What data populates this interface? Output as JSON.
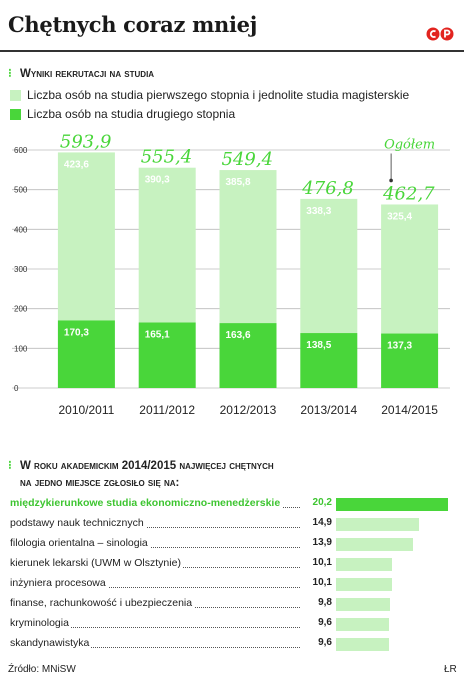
{
  "header": {
    "title": "Chętnych coraz mniej"
  },
  "section1": {
    "heading": "Wyniki rekrutacji na studia"
  },
  "legend": {
    "first": "Liczba osób na studia pierwszego stopnia i jednolite studia magisterskie",
    "second": "Liczba osób na studia drugiego stopnia"
  },
  "colors": {
    "accent": "#49d63a",
    "light": "#c7f2c0",
    "logo": "#e2241f"
  },
  "chart_data": {
    "type": "bar",
    "stacked": true,
    "categories": [
      "2010/2011",
      "2011/2012",
      "2012/2013",
      "2013/2014",
      "2014/2015"
    ],
    "series": [
      {
        "name": "Liczba osób na studia drugiego stopnia",
        "values": [
          170.3,
          165.1,
          163.6,
          138.5,
          137.3
        ],
        "labels": [
          "170,3",
          "165,1",
          "163,6",
          "138,5",
          "137,3"
        ]
      },
      {
        "name": "Liczba osób na studia pierwszego stopnia i jednolite studia magisterskie",
        "values": [
          423.6,
          390.3,
          385.8,
          338.3,
          325.4
        ],
        "labels": [
          "423,6",
          "390,3",
          "385,8",
          "338,3",
          "325,4"
        ]
      }
    ],
    "totals": [
      593.9,
      555.4,
      549.4,
      476.8,
      462.7
    ],
    "total_labels": [
      "593,9",
      "555,4",
      "549,4",
      "476,8",
      "462,7"
    ],
    "total_annotation": "Ogółem",
    "yticks": [
      "600",
      "500",
      "400",
      "300",
      "200",
      "100",
      "0"
    ],
    "ytick_values": [
      600,
      500,
      400,
      300,
      200,
      100,
      0
    ],
    "ylim": [
      0,
      600
    ],
    "grid": true
  },
  "section2": {
    "heading_line1": "W roku akademickim 2014/2015 najwięcej chętnych",
    "heading_line2": "na jedno miejsce zgłosiło się na:",
    "items": [
      {
        "name": "międzykierunkowe studia ekonomiczno-menedżerskie",
        "value": 20.2,
        "label": "20,2"
      },
      {
        "name": "podstawy nauk technicznych",
        "value": 14.9,
        "label": "14,9"
      },
      {
        "name": "filologia orientalna – sinologia",
        "value": 13.9,
        "label": "13,9"
      },
      {
        "name": "kierunek lekarski (UWM w Olsztynie)",
        "value": 10.1,
        "label": "10,1"
      },
      {
        "name": "inżyniera procesowa",
        "value": 10.1,
        "label": "10,1"
      },
      {
        "name": "finanse, rachunkowość i ubezpieczenia",
        "value": 9.8,
        "label": "9,8"
      },
      {
        "name": "kryminologia",
        "value": 9.6,
        "label": "9,6"
      },
      {
        "name": "skandynawistyka",
        "value": 9.6,
        "label": "9,6"
      }
    ]
  },
  "footer": {
    "source": "Źródło: MNiSW",
    "credit": "ŁR"
  }
}
